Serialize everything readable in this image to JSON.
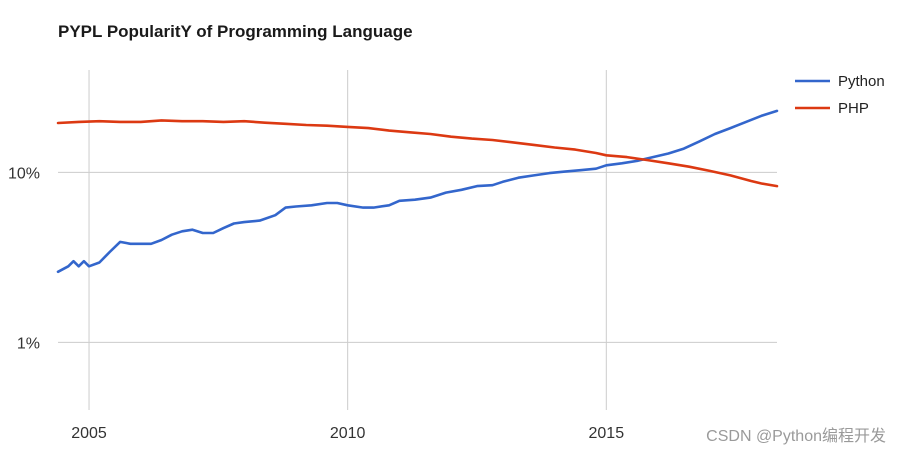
{
  "chart_data": {
    "type": "line",
    "title": "PYPL PopularitY of Programming Language",
    "yscale": "log",
    "ylim": [
      0.4,
      40
    ],
    "y_ticks": [
      {
        "value": 1,
        "label": "1%"
      },
      {
        "value": 10,
        "label": "10%"
      }
    ],
    "xlim": [
      2004.4,
      2018.3
    ],
    "x_ticks": [
      {
        "value": 2005,
        "label": "2005"
      },
      {
        "value": 2010,
        "label": "2010"
      },
      {
        "value": 2015,
        "label": "2015"
      }
    ],
    "legend_position": "top-right",
    "series": [
      {
        "name": "Python",
        "color": "#3366cc",
        "x": [
          2004.4,
          2004.6,
          2004.7,
          2004.8,
          2004.9,
          2005.0,
          2005.2,
          2005.4,
          2005.6,
          2005.8,
          2006.0,
          2006.2,
          2006.4,
          2006.6,
          2006.8,
          2007.0,
          2007.2,
          2007.4,
          2007.6,
          2007.8,
          2008.0,
          2008.3,
          2008.6,
          2008.8,
          2009.0,
          2009.3,
          2009.6,
          2009.8,
          2010.0,
          2010.3,
          2010.5,
          2010.8,
          2011.0,
          2011.3,
          2011.6,
          2011.9,
          2012.2,
          2012.5,
          2012.8,
          2013.0,
          2013.3,
          2013.6,
          2013.9,
          2014.2,
          2014.5,
          2014.8,
          2015.0,
          2015.3,
          2015.6,
          2015.9,
          2016.2,
          2016.5,
          2016.8,
          2017.1,
          2017.4,
          2017.7,
          2018.0,
          2018.3
        ],
        "values": [
          2.6,
          2.8,
          3.0,
          2.8,
          3.0,
          2.8,
          2.95,
          3.4,
          3.9,
          3.8,
          3.8,
          3.8,
          4.0,
          4.3,
          4.5,
          4.6,
          4.4,
          4.4,
          4.7,
          5.0,
          5.1,
          5.2,
          5.6,
          6.2,
          6.3,
          6.4,
          6.6,
          6.6,
          6.4,
          6.2,
          6.2,
          6.4,
          6.8,
          6.9,
          7.1,
          7.6,
          7.9,
          8.3,
          8.4,
          8.8,
          9.3,
          9.6,
          9.9,
          10.1,
          10.3,
          10.5,
          11.0,
          11.3,
          11.7,
          12.3,
          12.9,
          13.8,
          15.2,
          16.8,
          18.2,
          19.8,
          21.5,
          23.0
        ]
      },
      {
        "name": "PHP",
        "color": "#dc3912",
        "x": [
          2004.4,
          2004.8,
          2005.2,
          2005.6,
          2006.0,
          2006.4,
          2006.8,
          2007.2,
          2007.6,
          2008.0,
          2008.4,
          2008.8,
          2009.2,
          2009.6,
          2010.0,
          2010.4,
          2010.8,
          2011.2,
          2011.6,
          2012.0,
          2012.4,
          2012.8,
          2013.2,
          2013.6,
          2014.0,
          2014.4,
          2014.8,
          2015.0,
          2015.4,
          2015.8,
          2016.2,
          2016.6,
          2017.0,
          2017.4,
          2017.8,
          2018.0,
          2018.3
        ],
        "values": [
          19.5,
          19.8,
          20.0,
          19.8,
          19.8,
          20.2,
          20.0,
          20.0,
          19.8,
          20.0,
          19.6,
          19.3,
          19.0,
          18.8,
          18.5,
          18.2,
          17.6,
          17.2,
          16.8,
          16.2,
          15.8,
          15.5,
          15.0,
          14.5,
          14.0,
          13.6,
          13.0,
          12.6,
          12.3,
          11.8,
          11.3,
          10.8,
          10.2,
          9.6,
          8.9,
          8.6,
          8.3
        ]
      }
    ]
  },
  "watermark": "CSDN @Python编程开发"
}
